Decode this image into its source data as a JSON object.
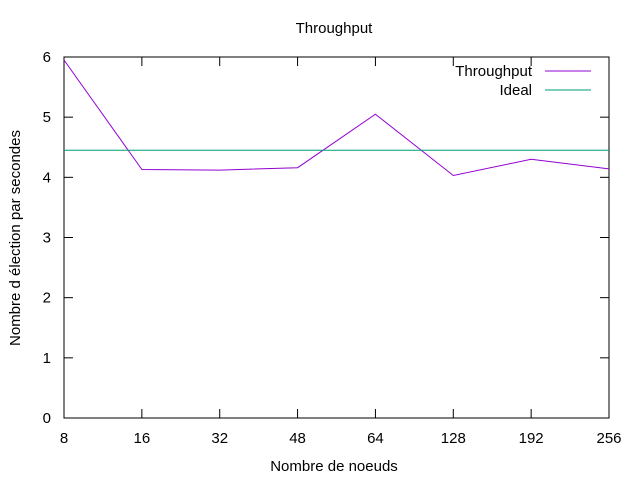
{
  "chart_data": {
    "type": "line",
    "title": "Throughput",
    "xlabel": "Nombre de noeuds",
    "ylabel": "Nombre d élection par secondes",
    "categories": [
      "8",
      "16",
      "32",
      "48",
      "64",
      "128",
      "192",
      "256"
    ],
    "yticks": [
      "0",
      "1",
      "2",
      "3",
      "4",
      "5",
      "6"
    ],
    "ylim": [
      0,
      6
    ],
    "grid": false,
    "legend": "top-right",
    "series": [
      {
        "name": "Throughput",
        "color": "#9400d3",
        "values": [
          5.95,
          4.13,
          4.12,
          4.16,
          5.05,
          4.03,
          4.3,
          4.14
        ]
      },
      {
        "name": "Ideal",
        "color": "#009e73",
        "values": [
          4.45,
          4.45,
          4.45,
          4.45,
          4.45,
          4.45,
          4.45,
          4.45
        ]
      }
    ]
  }
}
